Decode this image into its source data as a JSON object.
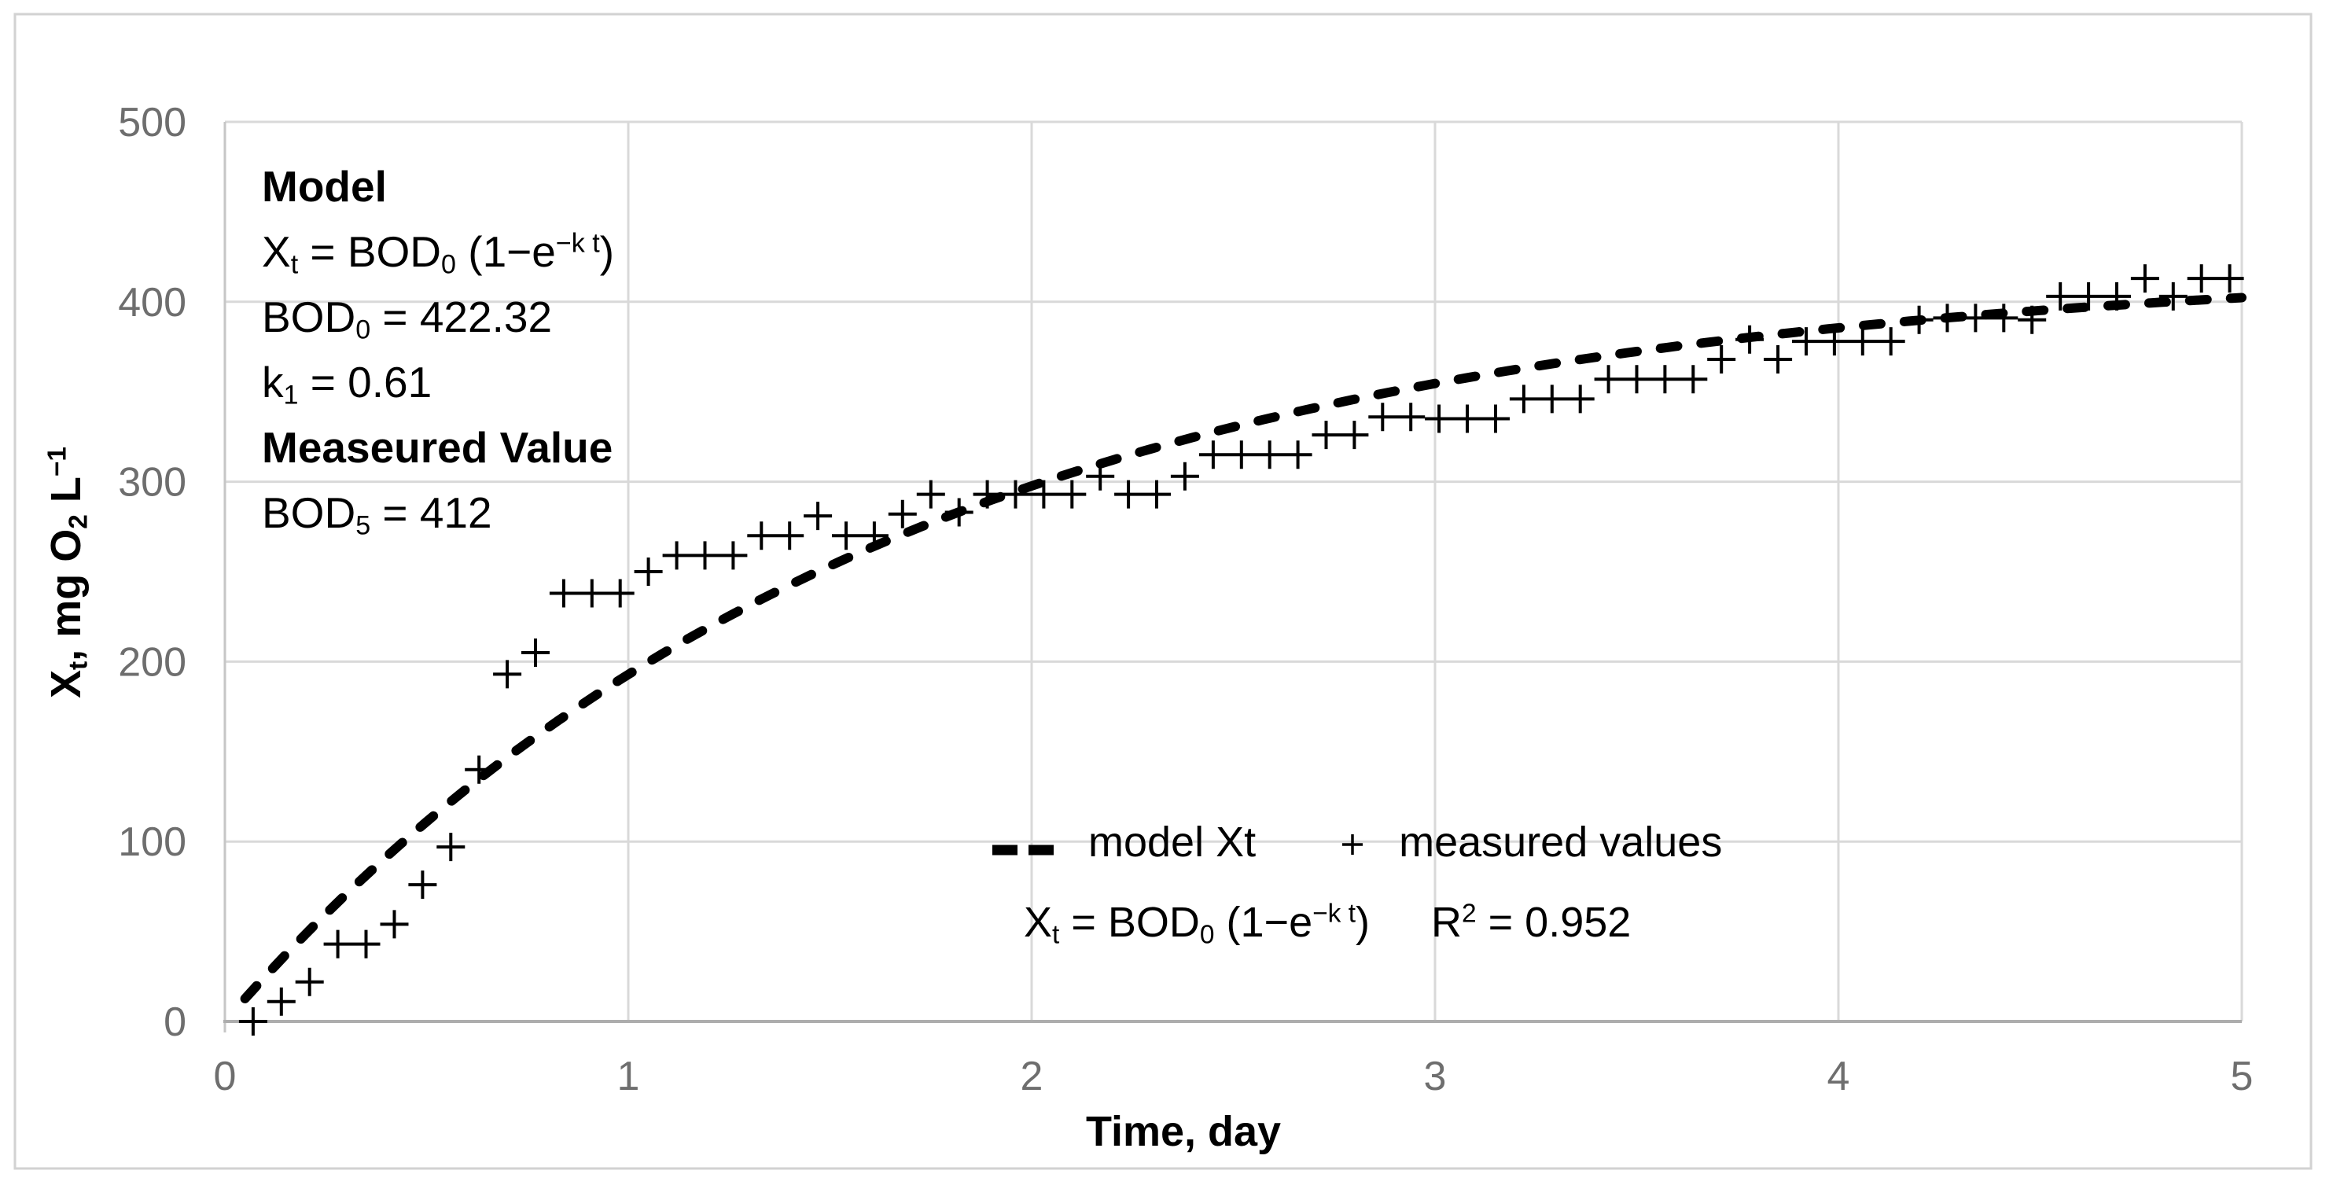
{
  "figure": {
    "background": "#ffffff",
    "border_color": "#d2d2d2",
    "gridline_color": "#d9d9d9",
    "y_axis_line_color": "#c6c6c6",
    "x_axis_line_color": "#adadad",
    "tick_label_color": "#6e6e6e",
    "series_color": "#000000"
  },
  "annotation": {
    "line1": "Model",
    "line2_segments": [
      {
        "t": "X"
      },
      {
        "t": "t",
        "s": "sub"
      },
      {
        "t": " = BOD"
      },
      {
        "t": "0",
        "s": "sub"
      },
      {
        "t": " (1−e"
      },
      {
        "t": "−k t",
        "s": "sup"
      },
      {
        "t": ")"
      }
    ],
    "line3_segments": [
      {
        "t": "BOD"
      },
      {
        "t": "0",
        "s": "sub"
      },
      {
        "t": " = 422.32"
      }
    ],
    "line4_segments": [
      {
        "t": "k"
      },
      {
        "t": "1",
        "s": "sub"
      },
      {
        "t": " = 0.61"
      }
    ],
    "line5": "Measeured Value",
    "line6_segments": [
      {
        "t": "BOD"
      },
      {
        "t": "5",
        "s": "sub"
      },
      {
        "t": " = 412"
      }
    ]
  },
  "legend": {
    "items": [
      {
        "symbol": "dashed-line",
        "label": "model Xt"
      },
      {
        "symbol": "plus-marker",
        "label": "measured values"
      }
    ],
    "formula_segments": [
      {
        "t": "X"
      },
      {
        "t": "t",
        "s": "sub"
      },
      {
        "t": " = BOD"
      },
      {
        "t": "0",
        "s": "sub"
      },
      {
        "t": " (1−e"
      },
      {
        "t": "−k t",
        "s": "sup"
      },
      {
        "t": ")"
      }
    ],
    "r2_segments": [
      {
        "t": "R"
      },
      {
        "t": "2",
        "s": "sup"
      },
      {
        "t": "  = 0.952"
      }
    ]
  },
  "chart_data": {
    "type": "scatter",
    "title": "",
    "xlabel": "Time, day",
    "ylabel": "Xt, mg O2 L-1",
    "ylabel_segments": [
      {
        "t": "X"
      },
      {
        "t": "t",
        "s": "sub"
      },
      {
        "t": ", mg O"
      },
      {
        "t": "2",
        "s": "sub"
      },
      {
        "t": " L"
      },
      {
        "t": "−1",
        "s": "sup"
      }
    ],
    "xlim": [
      0,
      5
    ],
    "ylim": [
      0,
      500
    ],
    "x_ticks": [
      0,
      1,
      2,
      3,
      4,
      5
    ],
    "y_ticks": [
      0,
      100,
      200,
      300,
      400,
      500
    ],
    "grid": true,
    "legend_position": "inside-bottom-center",
    "r_squared": 0.952,
    "series": [
      {
        "name": "model Xt",
        "type": "line",
        "style": "dashed",
        "equation": "Xt = BOD0 (1-e^(-k t))",
        "params": {
          "BOD0": 422.32,
          "k1": 0.61
        },
        "x_start": 0.05,
        "x_end": 5.0
      },
      {
        "name": "measured values",
        "type": "scatter",
        "marker": "plus",
        "points": [
          [
            0.07,
            0
          ],
          [
            0.14,
            11
          ],
          [
            0.21,
            22
          ],
          [
            0.28,
            43
          ],
          [
            0.35,
            43
          ],
          [
            0.42,
            54
          ],
          [
            0.49,
            76
          ],
          [
            0.56,
            97
          ],
          [
            0.63,
            140
          ],
          [
            0.7,
            193
          ],
          [
            0.77,
            205
          ],
          [
            0.84,
            238
          ],
          [
            0.91,
            238
          ],
          [
            0.98,
            238
          ],
          [
            1.05,
            250
          ],
          [
            1.12,
            259
          ],
          [
            1.19,
            259
          ],
          [
            1.26,
            259
          ],
          [
            1.33,
            270
          ],
          [
            1.4,
            270
          ],
          [
            1.47,
            281
          ],
          [
            1.54,
            270
          ],
          [
            1.61,
            270
          ],
          [
            1.68,
            282
          ],
          [
            1.75,
            293
          ],
          [
            1.82,
            283
          ],
          [
            1.89,
            293
          ],
          [
            1.96,
            293
          ],
          [
            2.03,
            293
          ],
          [
            2.1,
            293
          ],
          [
            2.17,
            303
          ],
          [
            2.24,
            293
          ],
          [
            2.31,
            293
          ],
          [
            2.38,
            303
          ],
          [
            2.45,
            315
          ],
          [
            2.52,
            315
          ],
          [
            2.59,
            315
          ],
          [
            2.66,
            315
          ],
          [
            2.73,
            326
          ],
          [
            2.8,
            326
          ],
          [
            2.87,
            336
          ],
          [
            2.94,
            336
          ],
          [
            3.01,
            335
          ],
          [
            3.08,
            335
          ],
          [
            3.15,
            335
          ],
          [
            3.22,
            346
          ],
          [
            3.29,
            346
          ],
          [
            3.36,
            346
          ],
          [
            3.43,
            357
          ],
          [
            3.5,
            357
          ],
          [
            3.57,
            357
          ],
          [
            3.64,
            357
          ],
          [
            3.71,
            368
          ],
          [
            3.78,
            379
          ],
          [
            3.85,
            368
          ],
          [
            3.92,
            378
          ],
          [
            3.99,
            378
          ],
          [
            4.06,
            378
          ],
          [
            4.13,
            378
          ],
          [
            4.2,
            390
          ],
          [
            4.27,
            391
          ],
          [
            4.34,
            391
          ],
          [
            4.41,
            391
          ],
          [
            4.48,
            390
          ],
          [
            4.55,
            403
          ],
          [
            4.62,
            403
          ],
          [
            4.69,
            403
          ],
          [
            4.76,
            413
          ],
          [
            4.83,
            403
          ],
          [
            4.9,
            413
          ],
          [
            4.97,
            413
          ]
        ]
      }
    ]
  }
}
